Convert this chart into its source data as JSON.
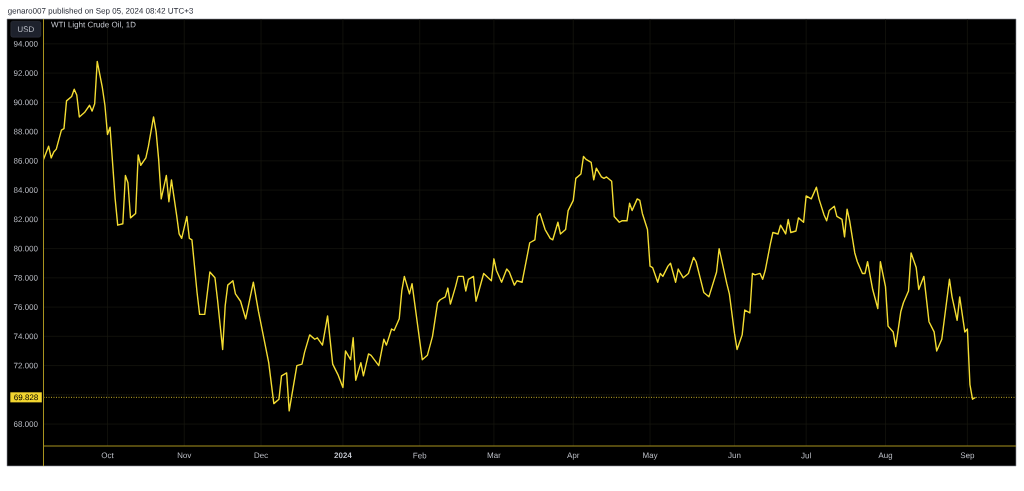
{
  "chart_data": {
    "type": "line",
    "title": "WTI Light Crude Oil, 1D",
    "ylabel": "USD",
    "annotations": [
      "genaro007 published on Sep 05, 2024 08:42 UTC+3"
    ],
    "color": "#f3dc32",
    "x": [
      "2023-09-07",
      "2023-09-09",
      "2023-09-10",
      "2023-09-11",
      "2023-09-12",
      "2023-09-14",
      "2023-09-15",
      "2023-09-16",
      "2023-09-18",
      "2023-09-19",
      "2023-09-20",
      "2023-09-21",
      "2023-09-23",
      "2023-09-25",
      "2023-09-26",
      "2023-09-27",
      "2023-09-28",
      "2023-09-30",
      "2023-10-01",
      "2023-10-02",
      "2023-10-03",
      "2023-10-05",
      "2023-10-06",
      "2023-10-08",
      "2023-10-09",
      "2023-10-10",
      "2023-10-11",
      "2023-10-13",
      "2023-10-14",
      "2023-10-15",
      "2023-10-17",
      "2023-10-18",
      "2023-10-20",
      "2023-10-21",
      "2023-10-22",
      "2023-10-23",
      "2023-10-25",
      "2023-10-26",
      "2023-10-27",
      "2023-10-29",
      "2023-10-30",
      "2023-10-31",
      "2023-11-02",
      "2023-11-03",
      "2023-11-04",
      "2023-11-06",
      "2023-11-07",
      "2023-11-09",
      "2023-11-11",
      "2023-11-13",
      "2023-11-14",
      "2023-11-16",
      "2023-11-17",
      "2023-11-18",
      "2023-11-20",
      "2023-11-21",
      "2023-11-23",
      "2023-11-25",
      "2023-11-28",
      "2023-11-30",
      "2023-12-04",
      "2023-12-06",
      "2023-12-08",
      "2023-12-09",
      "2023-12-11",
      "2023-12-12",
      "2023-12-15",
      "2023-12-17",
      "2023-12-18",
      "2023-12-20",
      "2023-12-22",
      "2023-12-23",
      "2023-12-25",
      "2023-12-27",
      "2023-12-29",
      "2023-12-31",
      "2024-01-02",
      "2024-01-03",
      "2024-01-05",
      "2024-01-06",
      "2024-01-07",
      "2024-01-09",
      "2024-01-10",
      "2024-01-12",
      "2024-01-13",
      "2024-01-16",
      "2024-01-18",
      "2024-01-19",
      "2024-01-21",
      "2024-01-22",
      "2024-01-24",
      "2024-01-25",
      "2024-01-26",
      "2024-01-28",
      "2024-01-29",
      "2024-02-02",
      "2024-02-04",
      "2024-02-06",
      "2024-02-08",
      "2024-02-09",
      "2024-02-11",
      "2024-02-12",
      "2024-02-13",
      "2024-02-15",
      "2024-02-16",
      "2024-02-18",
      "2024-02-19",
      "2024-02-20",
      "2024-02-22",
      "2024-02-23",
      "2024-02-26",
      "2024-02-29",
      "2024-03-01",
      "2024-03-02",
      "2024-03-04",
      "2024-03-06",
      "2024-03-07",
      "2024-03-09",
      "2024-03-10",
      "2024-03-12",
      "2024-03-15",
      "2024-03-17",
      "2024-03-18",
      "2024-03-19",
      "2024-03-21",
      "2024-03-23",
      "2024-03-24",
      "2024-03-26",
      "2024-03-27",
      "2024-03-29",
      "2024-03-30",
      "2024-04-01",
      "2024-04-02",
      "2024-04-04",
      "2024-04-05",
      "2024-04-06",
      "2024-04-08",
      "2024-04-09",
      "2024-04-10",
      "2024-04-12",
      "2024-04-13",
      "2024-04-14",
      "2024-04-16",
      "2024-04-17",
      "2024-04-19",
      "2024-04-20",
      "2024-04-22",
      "2024-04-23",
      "2024-04-24",
      "2024-04-26",
      "2024-04-27",
      "2024-04-28",
      "2024-04-30",
      "2024-05-01",
      "2024-05-02",
      "2024-05-04",
      "2024-05-05",
      "2024-05-06",
      "2024-05-08",
      "2024-05-09",
      "2024-05-11",
      "2024-05-12",
      "2024-05-14",
      "2024-05-16",
      "2024-05-18",
      "2024-05-19",
      "2024-05-22",
      "2024-05-24",
      "2024-05-27",
      "2024-05-28",
      "2024-05-31",
      "2024-06-01",
      "2024-06-03",
      "2024-06-04",
      "2024-06-06",
      "2024-06-07",
      "2024-06-09",
      "2024-06-10",
      "2024-06-11",
      "2024-06-13",
      "2024-06-14",
      "2024-06-15",
      "2024-06-17",
      "2024-06-18",
      "2024-06-20",
      "2024-06-21",
      "2024-06-23",
      "2024-06-24",
      "2024-06-25",
      "2024-06-27",
      "2024-06-28",
      "2024-06-30",
      "2024-07-01",
      "2024-07-03",
      "2024-07-05",
      "2024-07-06",
      "2024-07-08",
      "2024-07-09",
      "2024-07-10",
      "2024-07-12",
      "2024-07-13",
      "2024-07-15",
      "2024-07-16",
      "2024-07-17",
      "2024-07-18",
      "2024-07-20",
      "2024-07-21",
      "2024-07-23",
      "2024-07-24",
      "2024-07-25",
      "2024-07-27",
      "2024-07-29",
      "2024-07-30",
      "2024-08-01",
      "2024-08-02",
      "2024-08-04",
      "2024-08-05",
      "2024-08-07",
      "2024-08-08",
      "2024-08-10",
      "2024-08-11",
      "2024-08-13",
      "2024-08-14",
      "2024-08-16",
      "2024-08-18",
      "2024-08-20",
      "2024-08-21",
      "2024-08-23",
      "2024-08-26",
      "2024-08-27",
      "2024-08-29",
      "2024-08-30",
      "2024-09-01",
      "2024-09-02",
      "2024-09-03",
      "2024-09-04",
      "2024-09-05"
    ],
    "values": [
      86.1,
      87.0,
      86.2,
      86.6,
      86.8,
      88.1,
      88.2,
      90.1,
      90.4,
      90.9,
      90.5,
      89.0,
      89.3,
      89.8,
      89.4,
      89.9,
      92.8,
      91.0,
      89.8,
      87.8,
      88.3,
      83.4,
      81.6,
      81.7,
      85.0,
      84.5,
      82.1,
      82.4,
      86.4,
      85.7,
      86.2,
      87.0,
      89.0,
      88.0,
      86.1,
      83.4,
      85.0,
      83.2,
      84.7,
      82.3,
      81.0,
      80.7,
      82.2,
      80.7,
      80.6,
      77.0,
      75.5,
      75.5,
      78.4,
      78.0,
      76.5,
      73.1,
      76.1,
      77.5,
      77.8,
      76.9,
      76.4,
      75.2,
      77.7,
      75.7,
      72.2,
      69.4,
      69.7,
      71.3,
      71.5,
      68.9,
      72.0,
      72.1,
      72.9,
      74.1,
      73.8,
      73.9,
      73.4,
      75.4,
      72.1,
      71.4,
      70.5,
      73.0,
      72.4,
      73.9,
      71.0,
      72.2,
      71.3,
      72.8,
      72.7,
      72.0,
      73.8,
      73.4,
      74.5,
      74.4,
      75.2,
      77.1,
      78.1,
      76.9,
      77.6,
      72.4,
      72.7,
      74.0,
      76.3,
      76.5,
      76.7,
      77.3,
      76.2,
      77.4,
      78.1,
      78.1,
      77.1,
      77.9,
      78.1,
      76.4,
      78.3,
      77.8,
      79.3,
      78.5,
      77.7,
      78.6,
      78.4,
      77.5,
      77.8,
      77.7,
      80.4,
      80.6,
      82.2,
      82.4,
      81.3,
      80.7,
      80.6,
      81.8,
      81.0,
      81.3,
      82.6,
      83.3,
      84.8,
      85.1,
      86.3,
      86.1,
      85.9,
      84.7,
      85.5,
      84.9,
      84.8,
      84.9,
      84.6,
      82.2,
      81.8,
      81.9,
      81.9,
      83.1,
      82.6,
      83.4,
      83.3,
      82.4,
      81.3,
      78.8,
      78.7,
      77.7,
      78.3,
      78.1,
      78.8,
      79.0,
      77.7,
      78.6,
      78.0,
      78.3,
      79.4,
      79.1,
      77.0,
      76.7,
      78.4,
      80.0,
      77.6,
      76.9,
      74.2,
      73.1,
      74.1,
      75.8,
      75.6,
      78.3,
      78.2,
      78.3,
      77.9,
      78.5,
      80.3,
      81.1,
      81.0,
      81.6,
      81.0,
      82.0,
      81.1,
      81.2,
      82.1,
      81.8,
      83.6,
      83.4,
      84.2,
      83.4,
      82.3,
      81.9,
      82.6,
      82.9,
      82.2,
      82.0,
      80.8,
      82.7,
      81.9,
      79.7,
      79.1,
      78.3,
      78.3,
      79.1,
      77.2,
      75.9,
      79.1,
      77.4,
      74.7,
      74.3,
      73.3,
      75.7,
      76.3,
      77.1,
      79.7,
      78.7,
      77.2,
      78.1,
      75.0,
      74.3,
      73.0,
      73.8,
      77.9,
      76.7,
      75.1,
      76.7,
      74.3,
      74.5,
      70.7,
      69.7,
      69.8
    ],
    "xlim": [
      "2023-09-07",
      "2024-09-21"
    ],
    "ylim": [
      66.5,
      95.7
    ],
    "xticks": [
      {
        "value": "2023-10-02",
        "label": "Oct"
      },
      {
        "value": "2023-11-01",
        "label": "Nov"
      },
      {
        "value": "2023-12-01",
        "label": "Dec"
      },
      {
        "value": "2024-01-02",
        "label": "2024"
      },
      {
        "value": "2024-02-01",
        "label": "Feb"
      },
      {
        "value": "2024-03-01",
        "label": "Mar"
      },
      {
        "value": "2024-04-01",
        "label": "Apr"
      },
      {
        "value": "2024-05-01",
        "label": "May"
      },
      {
        "value": "2024-06-03",
        "label": "Jun"
      },
      {
        "value": "2024-07-01",
        "label": "Jul"
      },
      {
        "value": "2024-08-01",
        "label": "Aug"
      },
      {
        "value": "2024-09-02",
        "label": "Sep"
      }
    ],
    "yticks": [
      {
        "value": 68,
        "label": "68.000"
      },
      {
        "value": 70,
        "label": null
      },
      {
        "value": 72,
        "label": "72.000"
      },
      {
        "value": 74,
        "label": "74.000"
      },
      {
        "value": 76,
        "label": "76.000"
      },
      {
        "value": 78,
        "label": "78.000"
      },
      {
        "value": 80,
        "label": "80.000"
      },
      {
        "value": 82,
        "label": "82.000"
      },
      {
        "value": 84,
        "label": "84.000"
      },
      {
        "value": 86,
        "label": "86.000"
      },
      {
        "value": 88,
        "label": "88.000"
      },
      {
        "value": 90,
        "label": "90.000"
      },
      {
        "value": 92,
        "label": "92.000"
      },
      {
        "value": 94,
        "label": "94.000"
      }
    ],
    "grid": true,
    "ref_lines": [
      {
        "axis": "y",
        "value": 69.828,
        "label": "69.828",
        "color": "#f2d530",
        "line_style": "dotted"
      }
    ]
  }
}
